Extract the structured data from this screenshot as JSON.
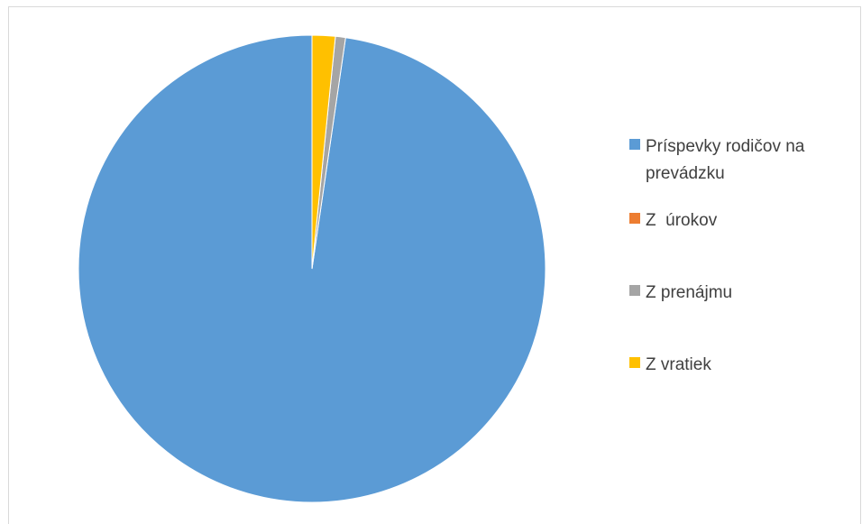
{
  "chart_data": {
    "type": "pie",
    "title": "",
    "start_angle_deg": 0,
    "direction": "clockwise",
    "slices": [
      {
        "label": "Príspevky rodičov na prevádzku",
        "value": 97.7,
        "color": "#5b9bd5"
      },
      {
        "label": "Z  úrokov",
        "value": 0.0,
        "color": "#ed7d31"
      },
      {
        "label": "Z prenájmu",
        "value": 0.7,
        "color": "#a5a5a5"
      },
      {
        "label": "Z vratiek",
        "value": 1.6,
        "color": "#ffc000"
      }
    ],
    "legend_position": "right"
  },
  "legend": {
    "items": [
      {
        "label": "Príspevky rodičov na prevádzku",
        "color": "#5b9bd5"
      },
      {
        "label": "Z  úrokov",
        "color": "#ed7d31"
      },
      {
        "label": "Z prenájmu",
        "color": "#a5a5a5"
      },
      {
        "label": "Z vratiek",
        "color": "#ffc000"
      }
    ]
  }
}
